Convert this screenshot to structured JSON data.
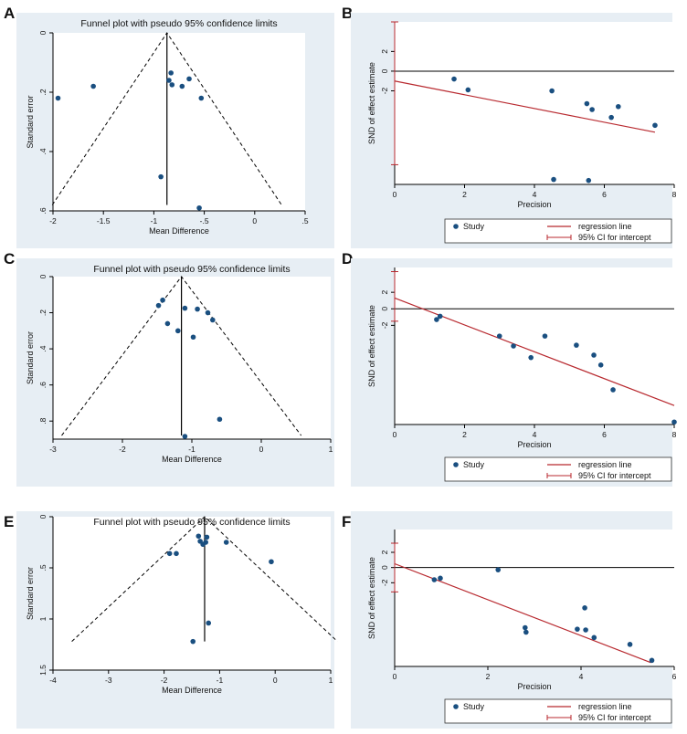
{
  "colors": {
    "panel_bg": "#e7eef4",
    "plot_bg": "#ffffff",
    "marker": "#1a4f80",
    "regression": "#b8292f",
    "frame": "#000000"
  },
  "chart_data": [
    {
      "panel": "A",
      "type": "scatter",
      "title": "Funnel plot with pseudo 95% confidence limits",
      "xlabel": "Mean Difference",
      "ylabel": "Standard error",
      "xlim": [
        -2,
        0.5
      ],
      "ylim": [
        0,
        0.6
      ],
      "y_reversed": true,
      "xticks": [
        -2,
        -1.5,
        -1,
        -0.5,
        0,
        0.5
      ],
      "xtick_labels": [
        "-2",
        "-1.5",
        "-1",
        "-.5",
        "0",
        ".5"
      ],
      "yticks": [
        0,
        0.2,
        0.4,
        0.6
      ],
      "ytick_labels": [
        "0",
        ".2",
        ".4",
        ".6"
      ],
      "pooled_effect": -0.87,
      "funnel_se_max": 0.58,
      "points": [
        {
          "x": -1.95,
          "y": 0.22
        },
        {
          "x": -1.6,
          "y": 0.18
        },
        {
          "x": -0.83,
          "y": 0.135
        },
        {
          "x": -0.85,
          "y": 0.16
        },
        {
          "x": -0.82,
          "y": 0.175
        },
        {
          "x": -0.72,
          "y": 0.18
        },
        {
          "x": -0.65,
          "y": 0.155
        },
        {
          "x": -0.53,
          "y": 0.22
        },
        {
          "x": -0.93,
          "y": 0.485
        },
        {
          "x": -0.55,
          "y": 0.59
        }
      ]
    },
    {
      "panel": "B",
      "type": "scatter",
      "xlabel": "Precision",
      "ylabel": "SND of effect estimate",
      "xlim": [
        0,
        8
      ],
      "ylim": [
        -11.5,
        5
      ],
      "xticks": [
        0,
        2,
        4,
        6,
        8
      ],
      "yticks": [
        2,
        0,
        -2
      ],
      "ytick_labels": [
        "2",
        "0",
        "-2"
      ],
      "regression": {
        "x": [
          0,
          7.45
        ],
        "y": [
          -1.0,
          -6.2
        ]
      },
      "ci_intercept": [
        -9.5,
        5.0
      ],
      "points": [
        {
          "x": 1.7,
          "y": -0.8
        },
        {
          "x": 2.1,
          "y": -1.9
        },
        {
          "x": 4.5,
          "y": -2.0
        },
        {
          "x": 5.5,
          "y": -3.3
        },
        {
          "x": 5.65,
          "y": -3.9
        },
        {
          "x": 6.4,
          "y": -3.6
        },
        {
          "x": 6.2,
          "y": -4.7
        },
        {
          "x": 7.45,
          "y": -5.5
        },
        {
          "x": 4.55,
          "y": -11.0
        },
        {
          "x": 5.55,
          "y": -11.1
        }
      ],
      "legend": {
        "study": "Study",
        "regression": "regression line",
        "ci": "95% CI for intercept"
      }
    },
    {
      "panel": "C",
      "type": "scatter",
      "title": "Funnel plot with pseudo 95% confidence limits",
      "xlabel": "Mean Difference",
      "ylabel": "Standard error",
      "xlim": [
        -3,
        1
      ],
      "ylim": [
        0,
        0.9
      ],
      "y_reversed": true,
      "xticks": [
        -3,
        -2,
        -1,
        0,
        1
      ],
      "xtick_labels": [
        "-3",
        "-2",
        "-1",
        "0",
        "1"
      ],
      "yticks": [
        0,
        0.2,
        0.4,
        0.6,
        0.8
      ],
      "ytick_labels": [
        "0",
        ".2",
        ".4",
        ".6",
        ".8"
      ],
      "pooled_effect": -1.15,
      "funnel_se_max": 0.88,
      "points": [
        {
          "x": -1.42,
          "y": 0.13
        },
        {
          "x": -1.48,
          "y": 0.16
        },
        {
          "x": -1.1,
          "y": 0.175
        },
        {
          "x": -0.92,
          "y": 0.18
        },
        {
          "x": -0.77,
          "y": 0.2
        },
        {
          "x": -0.7,
          "y": 0.24
        },
        {
          "x": -1.35,
          "y": 0.26
        },
        {
          "x": -1.2,
          "y": 0.3
        },
        {
          "x": -0.98,
          "y": 0.335
        },
        {
          "x": -0.6,
          "y": 0.79
        },
        {
          "x": -1.1,
          "y": 0.885
        }
      ]
    },
    {
      "panel": "D",
      "type": "scatter",
      "xlabel": "Precision",
      "ylabel": "SND of effect estimate",
      "xlim": [
        0,
        8
      ],
      "ylim": [
        -14,
        5
      ],
      "xticks": [
        0,
        2,
        4,
        6,
        8
      ],
      "yticks": [
        2,
        0,
        -2
      ],
      "ytick_labels": [
        "2",
        "0",
        "-2"
      ],
      "regression": {
        "x": [
          0,
          8
        ],
        "y": [
          1.3,
          -11.7
        ]
      },
      "ci_intercept": [
        -1.5,
        4.5
      ],
      "points": [
        {
          "x": 1.2,
          "y": -1.3
        },
        {
          "x": 1.3,
          "y": -0.9
        },
        {
          "x": 3.0,
          "y": -3.3
        },
        {
          "x": 3.4,
          "y": -4.5
        },
        {
          "x": 3.9,
          "y": -5.9
        },
        {
          "x": 4.3,
          "y": -3.3
        },
        {
          "x": 5.2,
          "y": -4.4
        },
        {
          "x": 5.7,
          "y": -5.6
        },
        {
          "x": 5.9,
          "y": -6.8
        },
        {
          "x": 6.25,
          "y": -9.8
        },
        {
          "x": 8.0,
          "y": -13.7
        }
      ],
      "legend": {
        "study": "Study",
        "regression": "regression line",
        "ci": "95% CI for intercept"
      }
    },
    {
      "panel": "E",
      "type": "scatter",
      "title": "Funnel plot with pseudo 95% confidence limits",
      "xlabel": "Mean Difference",
      "ylabel": "Standard error",
      "xlim": [
        -4,
        1
      ],
      "ylim": [
        0,
        1.5
      ],
      "y_reversed": true,
      "xticks": [
        -4,
        -3,
        -2,
        -1,
        0,
        1
      ],
      "xtick_labels": [
        "-4",
        "-3",
        "-2",
        "-1",
        "0",
        "1"
      ],
      "yticks": [
        0,
        0.5,
        1,
        1.5
      ],
      "ytick_labels": [
        "0",
        ".5",
        "1",
        "1.5"
      ],
      "pooled_effect": -1.27,
      "funnel_se_max": 1.22,
      "points": [
        {
          "x": -1.9,
          "y": 0.36
        },
        {
          "x": -1.78,
          "y": 0.36
        },
        {
          "x": -1.38,
          "y": 0.19
        },
        {
          "x": -1.23,
          "y": 0.2
        },
        {
          "x": -1.35,
          "y": 0.24
        },
        {
          "x": -1.3,
          "y": 0.27
        },
        {
          "x": -1.25,
          "y": 0.25
        },
        {
          "x": -0.88,
          "y": 0.25
        },
        {
          "x": -0.07,
          "y": 0.44
        },
        {
          "x": -1.2,
          "y": 1.04
        },
        {
          "x": -1.48,
          "y": 1.22
        }
      ]
    },
    {
      "panel": "F",
      "type": "scatter",
      "xlabel": "Precision",
      "ylabel": "SND of effect estimate",
      "xlim": [
        0,
        6
      ],
      "ylim": [
        -13,
        5
      ],
      "xticks": [
        0,
        2,
        4,
        6
      ],
      "yticks": [
        2,
        0,
        -2
      ],
      "ytick_labels": [
        "2",
        "0",
        "-2"
      ],
      "regression": {
        "x": [
          0,
          5.5
        ],
        "y": [
          0.5,
          -12.5
        ]
      },
      "ci_intercept": [
        -3.2,
        3.2
      ],
      "points": [
        {
          "x": 0.85,
          "y": -1.6
        },
        {
          "x": 0.98,
          "y": -1.4
        },
        {
          "x": 2.22,
          "y": -0.3
        },
        {
          "x": 2.8,
          "y": -7.9
        },
        {
          "x": 2.82,
          "y": -8.5
        },
        {
          "x": 3.92,
          "y": -8.1
        },
        {
          "x": 4.08,
          "y": -5.3
        },
        {
          "x": 4.1,
          "y": -8.2
        },
        {
          "x": 4.28,
          "y": -9.2
        },
        {
          "x": 5.05,
          "y": -10.1
        },
        {
          "x": 5.52,
          "y": -12.2
        }
      ],
      "legend": {
        "study": "Study",
        "regression": "regression line",
        "ci": "95% CI for intercept"
      }
    }
  ]
}
